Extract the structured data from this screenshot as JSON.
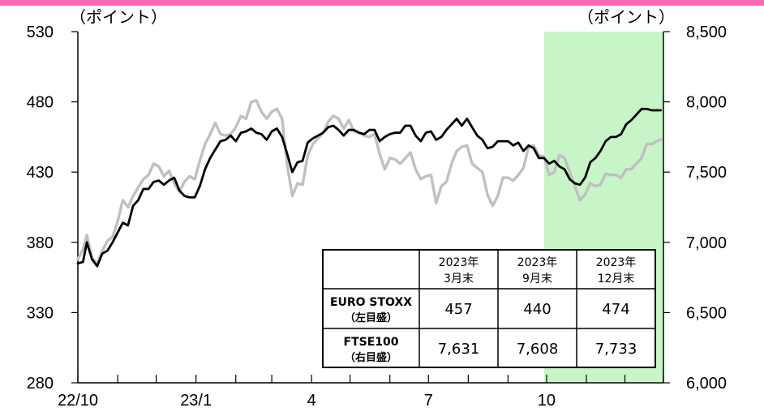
{
  "chart_data": {
    "type": "line",
    "left_axis": {
      "unit_label": "（ポイント）",
      "range": [
        280,
        530
      ],
      "ticks": [
        530,
        480,
        430,
        380,
        330,
        280
      ],
      "tick_labels": [
        "530",
        "480",
        "430",
        "380",
        "330",
        "280"
      ]
    },
    "right_axis": {
      "unit_label": "（ポイント）",
      "range": [
        6000,
        8500
      ],
      "ticks": [
        8500,
        8000,
        7500,
        7000,
        6500,
        6000
      ],
      "tick_labels": [
        "8,500",
        "8,000",
        "7,500",
        "7,000",
        "6,500",
        "6,000"
      ]
    },
    "x_axis": {
      "range": [
        "2022-10-01",
        "2023-12-31"
      ],
      "tick_labels": [
        {
          "date": "2022-10-01",
          "label": "22/10"
        },
        {
          "date": "2023-01-01",
          "label": "23/1"
        },
        {
          "date": "2023-04-01",
          "label": "4"
        },
        {
          "date": "2023-07-01",
          "label": "7"
        },
        {
          "date": "2023-10-01",
          "label": "10"
        }
      ],
      "minor_ticks": [
        "2022-11-01",
        "2022-12-01",
        "2023-02-01",
        "2023-03-01",
        "2023-05-01",
        "2023-06-01",
        "2023-08-01",
        "2023-09-01",
        "2023-11-01",
        "2023-12-01",
        "2023-12-31"
      ]
    },
    "highlight_band": {
      "start": "2023-09-29",
      "end": "2023-12-31",
      "color": "#c8f5c8"
    },
    "series": [
      {
        "axis": "left",
        "color": "#000000",
        "points": [
          [
            "2022-10-01",
            365
          ],
          [
            "2022-10-05",
            366
          ],
          [
            "2022-10-08",
            380
          ],
          [
            "2022-10-12",
            368
          ],
          [
            "2022-10-16",
            363
          ],
          [
            "2022-10-20",
            372
          ],
          [
            "2022-10-24",
            374
          ],
          [
            "2022-10-28",
            380
          ],
          [
            "2022-11-01",
            387
          ],
          [
            "2022-11-05",
            394
          ],
          [
            "2022-11-09",
            392
          ],
          [
            "2022-11-13",
            406
          ],
          [
            "2022-11-17",
            410
          ],
          [
            "2022-11-21",
            418
          ],
          [
            "2022-11-25",
            418
          ],
          [
            "2022-11-29",
            423
          ],
          [
            "2022-12-03",
            424
          ],
          [
            "2022-12-07",
            421
          ],
          [
            "2022-12-11",
            424
          ],
          [
            "2022-12-15",
            426
          ],
          [
            "2022-12-19",
            417
          ],
          [
            "2022-12-23",
            413
          ],
          [
            "2022-12-27",
            412
          ],
          [
            "2022-12-31",
            412
          ],
          [
            "2023-01-04",
            420
          ],
          [
            "2023-01-08",
            432
          ],
          [
            "2023-01-12",
            440
          ],
          [
            "2023-01-16",
            446
          ],
          [
            "2023-01-20",
            452
          ],
          [
            "2023-01-24",
            453
          ],
          [
            "2023-01-28",
            456
          ],
          [
            "2023-02-01",
            452
          ],
          [
            "2023-02-05",
            458
          ],
          [
            "2023-02-09",
            459
          ],
          [
            "2023-02-13",
            461
          ],
          [
            "2023-02-17",
            458
          ],
          [
            "2023-02-21",
            457
          ],
          [
            "2023-02-25",
            453
          ],
          [
            "2023-03-01",
            459
          ],
          [
            "2023-03-05",
            461
          ],
          [
            "2023-03-09",
            455
          ],
          [
            "2023-03-13",
            443
          ],
          [
            "2023-03-17",
            430
          ],
          [
            "2023-03-21",
            437
          ],
          [
            "2023-03-25",
            438
          ],
          [
            "2023-03-29",
            451
          ],
          [
            "2023-04-02",
            454
          ],
          [
            "2023-04-06",
            456
          ],
          [
            "2023-04-10",
            458
          ],
          [
            "2023-04-14",
            462
          ],
          [
            "2023-04-18",
            463
          ],
          [
            "2023-04-22",
            460
          ],
          [
            "2023-04-26",
            456
          ],
          [
            "2023-04-30",
            460
          ],
          [
            "2023-05-04",
            460
          ],
          [
            "2023-05-08",
            458
          ],
          [
            "2023-05-12",
            457
          ],
          [
            "2023-05-16",
            460
          ],
          [
            "2023-05-20",
            460
          ],
          [
            "2023-05-24",
            452
          ],
          [
            "2023-05-28",
            455
          ],
          [
            "2023-06-01",
            457
          ],
          [
            "2023-06-05",
            458
          ],
          [
            "2023-06-09",
            458
          ],
          [
            "2023-06-13",
            463
          ],
          [
            "2023-06-17",
            463
          ],
          [
            "2023-06-21",
            456
          ],
          [
            "2023-06-25",
            452
          ],
          [
            "2023-06-29",
            458
          ],
          [
            "2023-07-03",
            459
          ],
          [
            "2023-07-07",
            453
          ],
          [
            "2023-07-11",
            455
          ],
          [
            "2023-07-15",
            460
          ],
          [
            "2023-07-19",
            464
          ],
          [
            "2023-07-23",
            468
          ],
          [
            "2023-07-27",
            463
          ],
          [
            "2023-07-31",
            468
          ],
          [
            "2023-08-04",
            462
          ],
          [
            "2023-08-08",
            456
          ],
          [
            "2023-08-12",
            453
          ],
          [
            "2023-08-16",
            447
          ],
          [
            "2023-08-20",
            448
          ],
          [
            "2023-08-24",
            452
          ],
          [
            "2023-08-28",
            452
          ],
          [
            "2023-09-01",
            452
          ],
          [
            "2023-09-05",
            449
          ],
          [
            "2023-09-09",
            451
          ],
          [
            "2023-09-13",
            445
          ],
          [
            "2023-09-17",
            449
          ],
          [
            "2023-09-21",
            447
          ],
          [
            "2023-09-25",
            440
          ],
          [
            "2023-09-29",
            440
          ],
          [
            "2023-10-03",
            436
          ],
          [
            "2023-10-07",
            438
          ],
          [
            "2023-10-11",
            434
          ],
          [
            "2023-10-15",
            432
          ],
          [
            "2023-10-19",
            425
          ],
          [
            "2023-10-23",
            422
          ],
          [
            "2023-10-27",
            421
          ],
          [
            "2023-10-31",
            426
          ],
          [
            "2023-11-04",
            437
          ],
          [
            "2023-11-08",
            440
          ],
          [
            "2023-11-12",
            445
          ],
          [
            "2023-11-16",
            452
          ],
          [
            "2023-11-20",
            455
          ],
          [
            "2023-11-24",
            455
          ],
          [
            "2023-11-28",
            457
          ],
          [
            "2023-12-02",
            464
          ],
          [
            "2023-12-06",
            467
          ],
          [
            "2023-12-10",
            471
          ],
          [
            "2023-12-14",
            475
          ],
          [
            "2023-12-18",
            475
          ],
          [
            "2023-12-22",
            474
          ],
          [
            "2023-12-26",
            474
          ],
          [
            "2023-12-29",
            474
          ]
        ]
      },
      {
        "axis": "right",
        "color": "#c0c0c0",
        "points": [
          [
            "2022-10-01",
            6880
          ],
          [
            "2022-10-05",
            6950
          ],
          [
            "2022-10-08",
            7050
          ],
          [
            "2022-10-12",
            6890
          ],
          [
            "2022-10-16",
            6850
          ],
          [
            "2022-10-20",
            6940
          ],
          [
            "2022-10-24",
            7010
          ],
          [
            "2022-10-28",
            7040
          ],
          [
            "2022-11-01",
            7150
          ],
          [
            "2022-11-05",
            7300
          ],
          [
            "2022-11-09",
            7250
          ],
          [
            "2022-11-13",
            7330
          ],
          [
            "2022-11-17",
            7390
          ],
          [
            "2022-11-21",
            7450
          ],
          [
            "2022-11-25",
            7480
          ],
          [
            "2022-11-29",
            7560
          ],
          [
            "2022-12-03",
            7540
          ],
          [
            "2022-12-07",
            7470
          ],
          [
            "2022-12-11",
            7510
          ],
          [
            "2022-12-15",
            7420
          ],
          [
            "2022-12-19",
            7360
          ],
          [
            "2022-12-23",
            7430
          ],
          [
            "2022-12-27",
            7470
          ],
          [
            "2022-12-31",
            7450
          ],
          [
            "2023-01-04",
            7580
          ],
          [
            "2023-01-08",
            7700
          ],
          [
            "2023-01-12",
            7770
          ],
          [
            "2023-01-16",
            7850
          ],
          [
            "2023-01-20",
            7770
          ],
          [
            "2023-01-24",
            7760
          ],
          [
            "2023-01-28",
            7770
          ],
          [
            "2023-02-01",
            7820
          ],
          [
            "2023-02-05",
            7900
          ],
          [
            "2023-02-09",
            7880
          ],
          [
            "2023-02-13",
            8000
          ],
          [
            "2023-02-17",
            8010
          ],
          [
            "2023-02-21",
            7930
          ],
          [
            "2023-02-25",
            7880
          ],
          [
            "2023-03-01",
            7930
          ],
          [
            "2023-03-05",
            7950
          ],
          [
            "2023-03-09",
            7880
          ],
          [
            "2023-03-13",
            7550
          ],
          [
            "2023-03-17",
            7330
          ],
          [
            "2023-03-21",
            7420
          ],
          [
            "2023-03-25",
            7410
          ],
          [
            "2023-03-29",
            7620
          ],
          [
            "2023-04-02",
            7700
          ],
          [
            "2023-04-06",
            7740
          ],
          [
            "2023-04-10",
            7780
          ],
          [
            "2023-04-14",
            7860
          ],
          [
            "2023-04-18",
            7900
          ],
          [
            "2023-04-22",
            7880
          ],
          [
            "2023-04-26",
            7810
          ],
          [
            "2023-04-30",
            7870
          ],
          [
            "2023-05-04",
            7790
          ],
          [
            "2023-05-08",
            7780
          ],
          [
            "2023-05-12",
            7760
          ],
          [
            "2023-05-16",
            7750
          ],
          [
            "2023-05-20",
            7770
          ],
          [
            "2023-05-24",
            7630
          ],
          [
            "2023-05-28",
            7520
          ],
          [
            "2023-06-01",
            7600
          ],
          [
            "2023-06-05",
            7590
          ],
          [
            "2023-06-09",
            7560
          ],
          [
            "2023-06-13",
            7600
          ],
          [
            "2023-06-17",
            7640
          ],
          [
            "2023-06-21",
            7520
          ],
          [
            "2023-06-25",
            7450
          ],
          [
            "2023-06-29",
            7470
          ],
          [
            "2023-07-03",
            7480
          ],
          [
            "2023-07-07",
            7280
          ],
          [
            "2023-07-11",
            7400
          ],
          [
            "2023-07-15",
            7430
          ],
          [
            "2023-07-19",
            7560
          ],
          [
            "2023-07-23",
            7650
          ],
          [
            "2023-07-27",
            7680
          ],
          [
            "2023-07-31",
            7690
          ],
          [
            "2023-08-04",
            7560
          ],
          [
            "2023-08-08",
            7530
          ],
          [
            "2023-08-12",
            7500
          ],
          [
            "2023-08-16",
            7340
          ],
          [
            "2023-08-20",
            7260
          ],
          [
            "2023-08-24",
            7330
          ],
          [
            "2023-08-28",
            7460
          ],
          [
            "2023-09-01",
            7460
          ],
          [
            "2023-09-05",
            7440
          ],
          [
            "2023-09-09",
            7480
          ],
          [
            "2023-09-13",
            7530
          ],
          [
            "2023-09-17",
            7680
          ],
          [
            "2023-09-21",
            7690
          ],
          [
            "2023-09-25",
            7620
          ],
          [
            "2023-09-29",
            7610
          ],
          [
            "2023-10-03",
            7480
          ],
          [
            "2023-10-07",
            7500
          ],
          [
            "2023-10-11",
            7620
          ],
          [
            "2023-10-15",
            7600
          ],
          [
            "2023-10-19",
            7500
          ],
          [
            "2023-10-23",
            7400
          ],
          [
            "2023-10-27",
            7300
          ],
          [
            "2023-10-31",
            7340
          ],
          [
            "2023-11-04",
            7420
          ],
          [
            "2023-11-08",
            7400
          ],
          [
            "2023-11-12",
            7410
          ],
          [
            "2023-11-16",
            7490
          ],
          [
            "2023-11-20",
            7480
          ],
          [
            "2023-11-24",
            7480
          ],
          [
            "2023-11-28",
            7460
          ],
          [
            "2023-12-02",
            7520
          ],
          [
            "2023-12-06",
            7520
          ],
          [
            "2023-12-10",
            7560
          ],
          [
            "2023-12-14",
            7600
          ],
          [
            "2023-12-18",
            7700
          ],
          [
            "2023-12-22",
            7700
          ],
          [
            "2023-12-26",
            7720
          ],
          [
            "2023-12-29",
            7733
          ]
        ]
      }
    ],
    "table": {
      "headers": [
        "",
        "2023年\n3月末",
        "2023年\n9月末",
        "2023年\n12月末"
      ],
      "rows": [
        {
          "label": "EURO STOXX",
          "sublabel": "（左目盛）",
          "color": "#000000",
          "values": [
            "457",
            "440",
            "474"
          ]
        },
        {
          "label": "FTSE100",
          "sublabel": "（右目盛）",
          "color": "#c0c0c0",
          "values": [
            "7,631",
            "7,608",
            "7,733"
          ]
        }
      ]
    }
  }
}
